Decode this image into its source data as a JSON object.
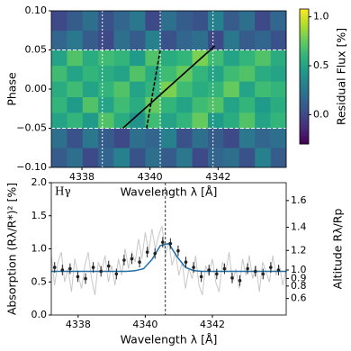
{
  "chart_data": [
    {
      "type": "heatmap",
      "xlabel": "Wavelength λ [Å]",
      "ylabel": "Phase",
      "colorbar_label": "Residual Flux [%]",
      "colormap": "viridis",
      "clim": [
        -0.3,
        1.08
      ],
      "cticks": [
        {
          "value": 0,
          "label": "0.0"
        },
        0.5,
        {
          "value": 1,
          "label": "1.0"
        }
      ],
      "xlim": [
        4337.1,
        4344.0
      ],
      "ylim": [
        -0.1,
        0.1
      ],
      "xticks": [
        4338,
        4340,
        4342
      ],
      "yticks": [
        {
          "value": -0.1,
          "label": "−0.10"
        },
        {
          "value": -0.05,
          "label": "−0.05"
        },
        {
          "value": 0,
          "label": "0.00"
        },
        {
          "value": 0.05,
          "label": "0.05"
        },
        {
          "value": 0.1,
          "label": "0.10"
        }
      ],
      "x_edges": [
        4337.1,
        4337.56,
        4338.02,
        4338.48,
        4338.94,
        4339.4,
        4339.86,
        4340.32,
        4340.78,
        4341.24,
        4341.7,
        4342.16,
        4342.62,
        4343.08,
        4343.54,
        4344.0
      ],
      "y_edges": [
        -0.1,
        -0.075,
        -0.05,
        -0.03,
        -0.01,
        0.01,
        0.03,
        0.05,
        0.075,
        0.1
      ],
      "z": [
        [
          0.1,
          0.2,
          0.0,
          0.15,
          0.3,
          0.05,
          0.2,
          0.1,
          0.25,
          0.0,
          0.15,
          0.2,
          0.05,
          0.3,
          0.1
        ],
        [
          0.2,
          0.05,
          0.25,
          0.1,
          0.0,
          0.2,
          0.15,
          0.3,
          0.05,
          0.2,
          0.1,
          0.0,
          0.25,
          0.15,
          0.2
        ],
        [
          0.5,
          0.6,
          0.45,
          0.7,
          0.55,
          0.4,
          0.65,
          0.5,
          0.6,
          0.75,
          0.45,
          0.55,
          0.7,
          0.5,
          0.6
        ],
        [
          0.6,
          0.45,
          0.7,
          0.5,
          0.65,
          0.55,
          0.75,
          0.6,
          0.5,
          0.65,
          0.7,
          0.5,
          0.6,
          0.45,
          0.55
        ],
        [
          0.55,
          0.65,
          0.5,
          0.6,
          0.7,
          0.5,
          0.6,
          0.8,
          0.65,
          0.55,
          0.6,
          0.75,
          0.5,
          0.65,
          0.6
        ],
        [
          0.65,
          0.5,
          0.6,
          0.55,
          0.5,
          0.7,
          0.55,
          0.65,
          0.75,
          0.6,
          0.5,
          0.65,
          0.7,
          0.55,
          0.5
        ],
        [
          0.5,
          0.7,
          0.55,
          0.65,
          0.6,
          0.45,
          0.7,
          0.55,
          0.6,
          0.8,
          0.65,
          0.5,
          0.6,
          0.7,
          0.55
        ],
        [
          0.15,
          0.25,
          0.1,
          0.0,
          0.2,
          0.1,
          0.3,
          0.05,
          0.15,
          0.2,
          0.0,
          0.25,
          0.1,
          0.15,
          0.05
        ],
        [
          0.0,
          0.1,
          0.2,
          0.05,
          0.15,
          0.25,
          0.0,
          0.2,
          0.1,
          0.05,
          0.3,
          0.1,
          0.2,
          0.0,
          0.15
        ]
      ],
      "lines": [
        {
          "x": [
            4339.2,
            4341.9
          ],
          "y": [
            -0.05,
            0.055
          ],
          "color": "#000000",
          "style": "solid"
        },
        {
          "x": [
            4339.9,
            4340.3
          ],
          "y": [
            -0.05,
            0.05
          ],
          "color": "#000000",
          "style": "dashed"
        }
      ],
      "vlines": [
        4338.6,
        4340.3,
        4341.85
      ],
      "hlines": [
        -0.05,
        0.05
      ],
      "guide_color": "#ffffff"
    },
    {
      "type": "line",
      "annotation": "Hγ",
      "xlabel": "Wavelength λ [Å]",
      "ylabel": "Absorption (Rλ/R*)² [%]",
      "y2label": "Altitude Rλ/Rp",
      "xlim": [
        4337.2,
        4344.2
      ],
      "ylim": [
        0,
        2
      ],
      "xticks": [
        4338,
        4340,
        4342
      ],
      "yticks": [
        {
          "value": 0,
          "label": "0.0"
        },
        0.5,
        {
          "value": 1,
          "label": "1.0"
        },
        1.5,
        {
          "value": 2,
          "label": "2.0"
        }
      ],
      "y2_scale": {
        "a0": 0.68,
        "k": 0.673
      },
      "y2ticks": [
        0.6,
        0.8,
        0.9,
        {
          "value": 1,
          "label": "1.0"
        },
        1.2,
        1.4,
        1.6
      ],
      "vline": 4340.6,
      "series": [
        {
          "color": "#c8c8c8",
          "mode": "line",
          "x": [
            4337.2,
            4337.3,
            4337.4,
            4337.5,
            4337.6,
            4337.7,
            4337.8,
            4337.9,
            4338.0,
            4338.1,
            4338.2,
            4338.3,
            4338.4,
            4338.5,
            4338.6,
            4338.7,
            4338.8,
            4338.9,
            4339.0,
            4339.1,
            4339.2,
            4339.3,
            4339.4,
            4339.5,
            4339.6,
            4339.7,
            4339.8,
            4339.9,
            4340.0,
            4340.1,
            4340.2,
            4340.3,
            4340.4,
            4340.5,
            4340.6,
            4340.7,
            4340.8,
            4340.9,
            4341.0,
            4341.1,
            4341.2,
            4341.3,
            4341.4,
            4341.5,
            4341.6,
            4341.7,
            4341.8,
            4341.9,
            4342.0,
            4342.1,
            4342.2,
            4342.3,
            4342.4,
            4342.5,
            4342.6,
            4342.7,
            4342.8,
            4342.9,
            4343.0,
            4343.1,
            4343.2,
            4343.3,
            4343.4,
            4343.5,
            4343.6,
            4343.7,
            4343.8,
            4343.9,
            4344.0,
            4344.1,
            4344.2
          ],
          "values": [
            0.9,
            0.45,
            0.8,
            0.95,
            0.5,
            0.7,
            0.35,
            0.85,
            0.6,
            0.4,
            0.75,
            0.95,
            0.55,
            0.3,
            0.8,
            0.65,
            0.9,
            0.5,
            0.75,
            0.45,
            0.85,
            0.6,
            1.0,
            0.7,
            0.95,
            0.8,
            1.15,
            0.85,
            1.25,
            0.95,
            1.3,
            1.0,
            1.2,
            1.35,
            0.9,
            1.1,
            0.75,
            0.95,
            0.6,
            0.8,
            0.4,
            0.7,
            0.55,
            0.9,
            0.45,
            0.3,
            0.75,
            0.6,
            0.85,
            0.5,
            0.35,
            0.8,
            0.65,
            0.95,
            0.5,
            0.7,
            0.4,
            0.85,
            0.6,
            0.9,
            0.55,
            0.75,
            0.35,
            0.8,
            0.65,
            0.5,
            0.9,
            0.6,
            0.75,
            0.45,
            0.7
          ]
        },
        {
          "color": "#1f6fa8",
          "mode": "line",
          "x": [
            4337.2,
            4337.45,
            4337.7,
            4337.95,
            4338.2,
            4338.45,
            4338.7,
            4338.95,
            4339.2,
            4339.45,
            4339.7,
            4339.95,
            4340.2,
            4340.45,
            4340.7,
            4340.95,
            4341.2,
            4341.45,
            4341.7,
            4341.95,
            4342.2,
            4342.45,
            4342.7,
            4342.95,
            4343.2,
            4343.45,
            4343.7,
            4343.95,
            4344.2
          ],
          "values": [
            0.66,
            0.66,
            0.66,
            0.66,
            0.66,
            0.66,
            0.66,
            0.66,
            0.66,
            0.66,
            0.67,
            0.7,
            0.84,
            1.05,
            1.08,
            0.88,
            0.72,
            0.67,
            0.66,
            0.66,
            0.66,
            0.66,
            0.66,
            0.66,
            0.66,
            0.66,
            0.66,
            0.66,
            0.66
          ]
        },
        {
          "color": "#222222",
          "mode": "errorbar",
          "x": [
            4337.3,
            4337.53,
            4337.76,
            4337.99,
            4338.22,
            4338.45,
            4338.68,
            4338.91,
            4339.14,
            4339.37,
            4339.6,
            4339.83,
            4340.06,
            4340.29,
            4340.52,
            4340.75,
            4340.98,
            4341.21,
            4341.44,
            4341.67,
            4341.9,
            4342.13,
            4342.36,
            4342.59,
            4342.82,
            4343.05,
            4343.28,
            4343.51,
            4343.74,
            4343.97
          ],
          "values": [
            0.72,
            0.68,
            0.7,
            0.58,
            0.55,
            0.72,
            0.66,
            0.74,
            0.62,
            0.83,
            0.85,
            0.8,
            0.95,
            0.93,
            1.1,
            1.08,
            0.97,
            0.8,
            0.72,
            0.58,
            0.68,
            0.62,
            0.7,
            0.56,
            0.52,
            0.7,
            0.66,
            0.62,
            0.72,
            0.68
          ],
          "errors": [
            0.08,
            0.08,
            0.08,
            0.08,
            0.08,
            0.08,
            0.08,
            0.08,
            0.08,
            0.08,
            0.08,
            0.08,
            0.08,
            0.08,
            0.08,
            0.08,
            0.08,
            0.08,
            0.08,
            0.08,
            0.08,
            0.08,
            0.08,
            0.08,
            0.08,
            0.08,
            0.08,
            0.08,
            0.08,
            0.08
          ]
        }
      ]
    }
  ]
}
